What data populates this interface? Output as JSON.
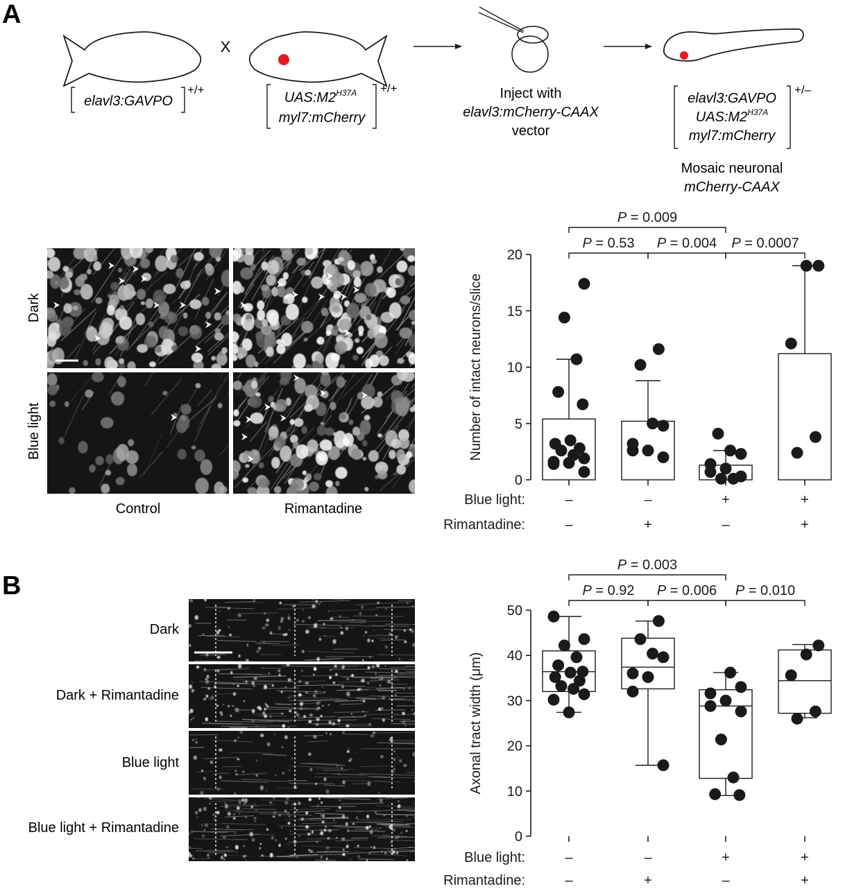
{
  "panel_a": {
    "letter": "A",
    "schematic": {
      "cross_symbol": "X",
      "parent1": {
        "label": "elavl3:GAVPO",
        "genotype": "+/+"
      },
      "parent2": {
        "line1_base": "UAS:M2",
        "line1_sup": "H37A",
        "line2": "myl7:mCherry",
        "genotype": "+/+"
      },
      "injection": {
        "line1": "Inject with",
        "line2": "elavl3:mCherry-CAAX",
        "line3": "vector"
      },
      "offspring": {
        "line1": "elavl3:GAVPO",
        "line2_base": "UAS:M2",
        "line2_sup": "H37A",
        "line3": "myl7:mCherry",
        "genotype": "+/–"
      },
      "result": {
        "line1": "Mosaic neuronal",
        "line2": "mCherry-CAAX"
      }
    },
    "micrographs": {
      "row_labels": [
        "Dark",
        "Blue light"
      ],
      "col_labels": [
        "Control",
        "Rimantadine"
      ]
    }
  },
  "panel_b": {
    "letter": "B",
    "micrographs": {
      "row_labels": [
        "Dark",
        "Dark + Rimantadine",
        "Blue light",
        "Blue light + Rimantadine"
      ]
    }
  },
  "condition_rows": {
    "blue_light": {
      "label": "Blue light:",
      "values": [
        "–",
        "–",
        "+",
        "+"
      ]
    },
    "rimantadine": {
      "label": "Rimantadine:",
      "values": [
        "–",
        "+",
        "–",
        "+"
      ]
    }
  },
  "chart_data": [
    {
      "type": "bar",
      "ylabel": "Number of intact neurons/slice",
      "ylim": [
        0,
        20
      ],
      "yticks": [
        0,
        5,
        10,
        15,
        20
      ],
      "groups": [
        {
          "mean": 5.4,
          "err_top": 10.7,
          "points": [
            17.4,
            14.4,
            10.7,
            7.8,
            6.7,
            3.5,
            3.2,
            2.8,
            2.6,
            2.2,
            1.9,
            1.6,
            1.5,
            1.4,
            0.7
          ]
        },
        {
          "mean": 5.2,
          "err_top": 8.8,
          "points": [
            11.6,
            10.2,
            5.0,
            4.8,
            3.2,
            2.6,
            2.6,
            2.0
          ]
        },
        {
          "mean": 1.3,
          "err_top": 2.6,
          "points": [
            4.1,
            2.6,
            2.3,
            1.4,
            1.0,
            0.7,
            0.3,
            0.1,
            0.1
          ]
        },
        {
          "mean": 11.2,
          "err_top": 19.0,
          "points": [
            19.0,
            19.0,
            12.1,
            3.8,
            2.4
          ]
        }
      ],
      "comparisons": [
        {
          "text": "P = 0.53",
          "from": 0,
          "to": 1,
          "level": 1
        },
        {
          "text": "P = 0.004",
          "from": 1,
          "to": 2,
          "level": 1
        },
        {
          "text": "P = 0.0007",
          "from": 2,
          "to": 3,
          "level": 1
        },
        {
          "text": "P = 0.009",
          "from": 0,
          "to": 2,
          "level": 2
        }
      ]
    },
    {
      "type": "box",
      "ylabel": "Axonal tract width (μm)",
      "ylim": [
        0,
        50
      ],
      "yticks": [
        0,
        10,
        20,
        30,
        40,
        50
      ],
      "groups": [
        {
          "min": 27.4,
          "q1": 32.0,
          "median": 36.4,
          "q3": 41.0,
          "max": 48.6,
          "points": [
            48.6,
            43.6,
            42.2,
            39.6,
            37.8,
            36.4,
            36.2,
            35.2,
            34.4,
            33.2,
            32.6,
            31.4,
            30.2,
            27.4
          ]
        },
        {
          "min": 15.7,
          "q1": 32.6,
          "median": 37.4,
          "q3": 43.8,
          "max": 47.6,
          "points": [
            47.6,
            43.6,
            40.4,
            39.6,
            36.0,
            35.2,
            32.0,
            15.7
          ]
        },
        {
          "min": 9.0,
          "q1": 12.8,
          "median": 28.8,
          "q3": 32.4,
          "max": 36.2,
          "points": [
            36.2,
            33.0,
            31.6,
            30.0,
            28.8,
            27.6,
            21.4,
            13.0,
            9.3,
            9.1
          ]
        },
        {
          "min": 26.2,
          "q1": 27.2,
          "median": 34.4,
          "q3": 41.2,
          "max": 42.4,
          "points": [
            42.2,
            40.2,
            35.6,
            27.6,
            26.0
          ]
        }
      ],
      "comparisons": [
        {
          "text": "P = 0.92",
          "from": 0,
          "to": 1,
          "level": 1
        },
        {
          "text": "P = 0.006",
          "from": 1,
          "to": 2,
          "level": 1
        },
        {
          "text": "P = 0.010",
          "from": 2,
          "to": 3,
          "level": 1
        },
        {
          "text": "P = 0.003",
          "from": 0,
          "to": 2,
          "level": 2
        }
      ]
    }
  ],
  "colors": {
    "fish_marker": "#e11b22",
    "ink": "#1a1a1a",
    "micrograph_bg": "#151515"
  }
}
